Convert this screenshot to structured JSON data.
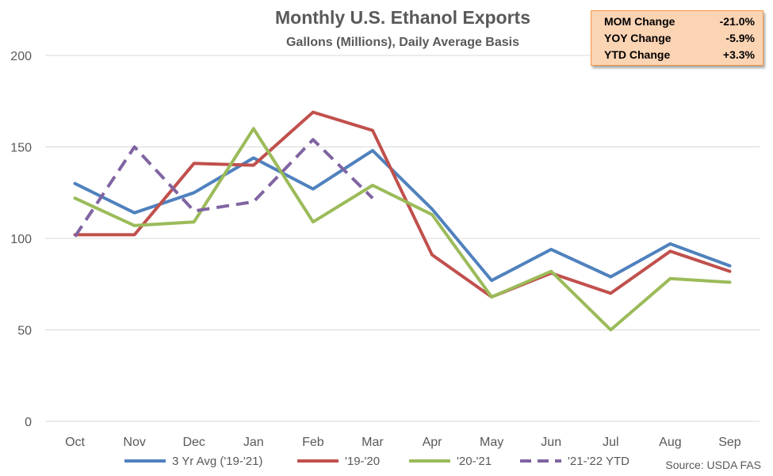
{
  "chart_data": {
    "type": "line",
    "title": "Monthly U.S. Ethanol Exports",
    "subtitle": "Gallons (Millions), Daily Average Basis",
    "categories": [
      "Oct",
      "Nov",
      "Dec",
      "Jan",
      "Feb",
      "Mar",
      "Apr",
      "May",
      "Jun",
      "Jul",
      "Aug",
      "Sep"
    ],
    "ylim": [
      0,
      200
    ],
    "yticks": [
      0,
      50,
      100,
      150,
      200
    ],
    "grid": true,
    "legend_position": "bottom",
    "series": [
      {
        "name": "3 Yr Avg ('19-'21)",
        "color": "#4f81bd",
        "dashed": false,
        "values": [
          130,
          114,
          125,
          144,
          127,
          148,
          116,
          77,
          94,
          79,
          97,
          85
        ]
      },
      {
        "name": "'19-'20",
        "color": "#c0504d",
        "dashed": false,
        "values": [
          102,
          102,
          141,
          140,
          169,
          159,
          91,
          68,
          81,
          70,
          93,
          82
        ]
      },
      {
        "name": "'20-'21",
        "color": "#9bbb59",
        "dashed": false,
        "values": [
          122,
          107,
          109,
          160,
          109,
          129,
          113,
          68,
          82,
          50,
          78,
          76
        ]
      },
      {
        "name": "'21-'22 YTD",
        "color": "#8064a2",
        "dashed": true,
        "values": [
          101,
          150,
          115,
          120,
          154,
          122,
          null,
          null,
          null,
          null,
          null,
          null
        ]
      }
    ],
    "source": "Source: USDA FAS"
  },
  "stats": [
    {
      "label": "MOM Change",
      "value": "-21.0%"
    },
    {
      "label": "YOY Change",
      "value": "-5.9%"
    },
    {
      "label": "YTD Change",
      "value": "+3.3%"
    }
  ]
}
